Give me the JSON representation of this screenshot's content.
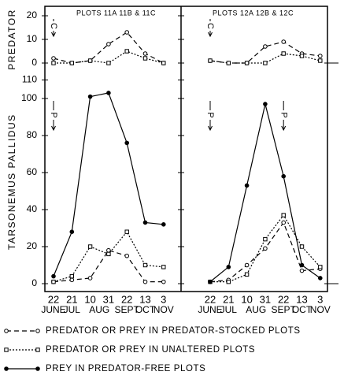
{
  "chart_data": [
    {
      "type": "line",
      "title": "PLOTS 11A 11B & 11C",
      "y_label": "PREDATOR",
      "ylim": [
        0,
        20
      ],
      "yticks": [
        0,
        10,
        20
      ],
      "series": [
        {
          "color": "#000000",
          "dash": "dashed",
          "marker": "open-circle",
          "values": [
            2,
            0,
            1,
            8,
            13,
            4,
            0
          ]
        },
        {
          "color": "#000000",
          "dash": "dotted",
          "marker": "open-square",
          "values": [
            0,
            0,
            1,
            0,
            5,
            2,
            0
          ]
        }
      ],
      "annotations": [
        {
          "text": "C",
          "at": 0
        }
      ]
    },
    {
      "type": "line",
      "y_label": "TARSONEMUS PALLIDUS",
      "ylim": [
        0,
        110
      ],
      "yticks": [
        0,
        20,
        40,
        60,
        80,
        100,
        110
      ],
      "categories": [
        "22",
        "21",
        "10",
        "31",
        "22",
        "13",
        "3"
      ],
      "month_labels": [
        "JUNE",
        "JUL",
        "AUG",
        null,
        "SEPT",
        "OCT",
        "NOV"
      ],
      "series": [
        {
          "name": "PREDATOR OR PREY IN PREDATOR-STOCKED PLOTS",
          "color": "#000000",
          "dash": "dashed",
          "marker": "open-circle",
          "values": [
            1,
            2,
            3,
            18,
            15,
            1,
            1
          ]
        },
        {
          "name": "PREDATOR OR PREY IN UNALTERED PLOTS",
          "color": "#000000",
          "dash": "dotted",
          "marker": "open-square",
          "values": [
            1,
            4,
            20,
            16,
            28,
            10,
            9
          ]
        },
        {
          "name": "PREY IN PREDATOR-FREE PLOTS",
          "color": "#000000",
          "dash": "solid",
          "marker": "filled-circle",
          "values": [
            4,
            28,
            101,
            103,
            76,
            33,
            32
          ]
        }
      ],
      "annotations": [
        {
          "text": "P",
          "at": 0
        }
      ]
    },
    {
      "type": "line",
      "title": "PLOTS 12A 12B & 12C",
      "ylim": [
        0,
        20
      ],
      "yticks": [
        0,
        10,
        20
      ],
      "series": [
        {
          "color": "#000000",
          "dash": "dashed",
          "marker": "open-circle",
          "values": [
            1,
            0,
            0,
            7,
            9,
            4,
            3
          ]
        },
        {
          "color": "#000000",
          "dash": "dotted",
          "marker": "open-square",
          "values": [
            1,
            0,
            0,
            0,
            4,
            3,
            1
          ]
        }
      ],
      "annotations": [
        {
          "text": "C",
          "at": 0
        }
      ]
    },
    {
      "type": "line",
      "ylim": [
        0,
        110
      ],
      "yticks": [
        0,
        20,
        40,
        60,
        80,
        100,
        110
      ],
      "categories": [
        "22",
        "21",
        "10",
        "31",
        "22",
        "13",
        "3"
      ],
      "month_labels": [
        "JUNE",
        "JUL",
        "AUG",
        null,
        "SEPT",
        "OCT",
        "NOV"
      ],
      "series": [
        {
          "color": "#000000",
          "dash": "dashed",
          "marker": "open-circle",
          "values": [
            1,
            2,
            10,
            19,
            33,
            7,
            8
          ]
        },
        {
          "color": "#000000",
          "dash": "dotted",
          "marker": "open-square",
          "values": [
            1,
            1,
            5,
            24,
            37,
            20,
            9
          ]
        },
        {
          "color": "#000000",
          "dash": "solid",
          "marker": "filled-circle",
          "values": [
            1,
            9,
            53,
            97,
            58,
            10,
            3
          ]
        }
      ],
      "annotations": [
        {
          "text": "P",
          "at": 0
        },
        {
          "text": "P",
          "at": 4
        }
      ]
    }
  ]
}
